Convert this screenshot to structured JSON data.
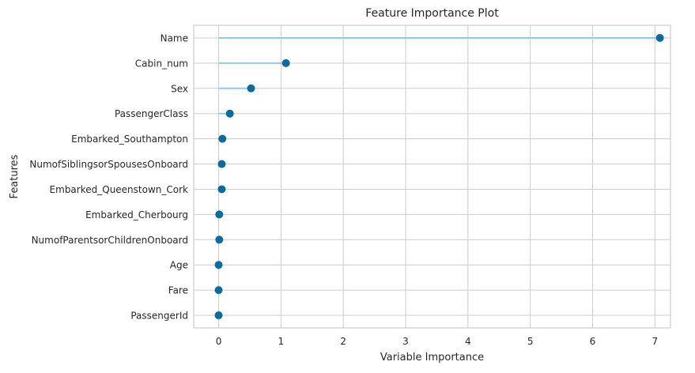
{
  "chart_data": {
    "type": "lollipop",
    "title": "Feature Importance Plot",
    "xlabel": "Variable Importance",
    "ylabel": "Features",
    "xlim": [
      -0.4,
      7.25
    ],
    "xticks": [
      0,
      1,
      2,
      3,
      4,
      5,
      6,
      7
    ],
    "grid": true,
    "categories": [
      "Name",
      "Cabin_num",
      "Sex",
      "PassengerClass",
      "Embarked_Southampton",
      "NumofSiblingsorSpousesOnboard",
      "Embarked_Queenstown_Cork",
      "Embarked_Cherbourg",
      "NumofParentsorChildrenOnboard",
      "Age",
      "Fare",
      "PassengerId"
    ],
    "values": [
      7.08,
      1.08,
      0.52,
      0.18,
      0.06,
      0.05,
      0.05,
      0.01,
      0.01,
      0.0,
      0.0,
      0.0
    ],
    "colors": {
      "stem": "#92cbe3",
      "marker": "#0b6b9e",
      "grid": "#cccccc",
      "spine": "#cccccc"
    }
  }
}
